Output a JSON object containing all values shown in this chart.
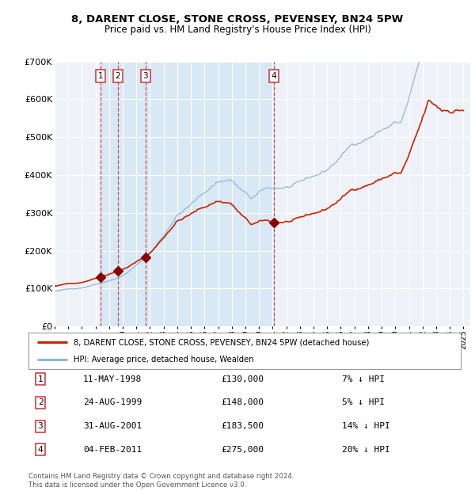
{
  "title": "8, DARENT CLOSE, STONE CROSS, PEVENSEY, BN24 5PW",
  "subtitle": "Price paid vs. HM Land Registry's House Price Index (HPI)",
  "ylim": [
    0,
    700000
  ],
  "yticks": [
    0,
    100000,
    200000,
    300000,
    400000,
    500000,
    600000,
    700000
  ],
  "ytick_labels": [
    "£0",
    "£100K",
    "£200K",
    "£300K",
    "£400K",
    "£500K",
    "£600K",
    "£700K"
  ],
  "xlim_start": 1995.0,
  "xlim_end": 2025.5,
  "background_color": "#ffffff",
  "plot_bg_color": "#eef2f8",
  "grid_color": "#ffffff",
  "hpi_color": "#90b8d8",
  "price_color": "#cc2200",
  "transaction_color": "#8b0000",
  "dashed_line_color": "#cc3333",
  "shade_color": "#d8e8f4",
  "transactions": [
    {
      "num": 1,
      "date_str": "11-MAY-1998",
      "date_x": 1998.36,
      "price": 130000
    },
    {
      "num": 2,
      "date_str": "24-AUG-1999",
      "date_x": 1999.65,
      "price": 148000
    },
    {
      "num": 3,
      "date_str": "31-AUG-2001",
      "date_x": 2001.66,
      "price": 183500
    },
    {
      "num": 4,
      "date_str": "04-FEB-2011",
      "date_x": 2011.09,
      "price": 275000
    }
  ],
  "legend_property_label": "8, DARENT CLOSE, STONE CROSS, PEVENSEY, BN24 5PW (detached house)",
  "legend_hpi_label": "HPI: Average price, detached house, Wealden",
  "footer_line1": "Contains HM Land Registry data © Crown copyright and database right 2024.",
  "footer_line2": "This data is licensed under the Open Government Licence v3.0.",
  "table_rows": [
    {
      "num": 1,
      "date": "11-MAY-1998",
      "price": "£130,000",
      "hpi": "7% ↓ HPI"
    },
    {
      "num": 2,
      "date": "24-AUG-1999",
      "price": "£148,000",
      "hpi": "5% ↓ HPI"
    },
    {
      "num": 3,
      "date": "31-AUG-2001",
      "price": "£183,500",
      "hpi": "14% ↓ HPI"
    },
    {
      "num": 4,
      "date": "04-FEB-2011",
      "price": "£275,000",
      "hpi": "20% ↓ HPI"
    }
  ]
}
